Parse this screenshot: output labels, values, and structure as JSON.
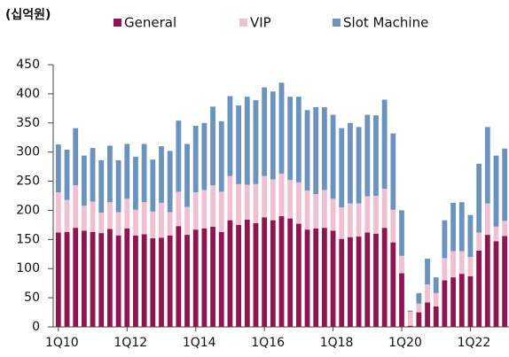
{
  "chart_data": {
    "type": "bar",
    "stacked": true,
    "y_label": "(십억원)",
    "categories": [
      "1Q10",
      null,
      null,
      null,
      null,
      null,
      null,
      null,
      "1Q12",
      null,
      null,
      null,
      null,
      null,
      null,
      null,
      "1Q14",
      null,
      null,
      null,
      null,
      null,
      null,
      null,
      "1Q16",
      null,
      null,
      null,
      null,
      null,
      null,
      null,
      "1Q18",
      null,
      null,
      null,
      null,
      null,
      null,
      null,
      "1Q20",
      null,
      null,
      null,
      null,
      null,
      null,
      null,
      "1Q22",
      null,
      null,
      null,
      null
    ],
    "series": [
      {
        "name": "General",
        "color": "#8f1450",
        "values": [
          162,
          163,
          170,
          165,
          163,
          161,
          168,
          157,
          169,
          157,
          159,
          152,
          153,
          157,
          173,
          158,
          167,
          169,
          172,
          163,
          183,
          175,
          184,
          178,
          188,
          183,
          190,
          186,
          177,
          167,
          169,
          170,
          165,
          151,
          154,
          155,
          162,
          160,
          170,
          145,
          92,
          2,
          25,
          42,
          35,
          80,
          85,
          91,
          87,
          131,
          158,
          147,
          156
        ]
      },
      {
        "name": "VIP",
        "color": "#efbfd2",
        "values": [
          69,
          55,
          73,
          43,
          52,
          35,
          46,
          40,
          51,
          44,
          55,
          46,
          60,
          40,
          59,
          48,
          64,
          66,
          71,
          69,
          76,
          70,
          60,
          67,
          71,
          70,
          73,
          66,
          71,
          67,
          59,
          65,
          55,
          54,
          58,
          57,
          62,
          65,
          67,
          56,
          30,
          24,
          15,
          31,
          23,
          38,
          45,
          39,
          33,
          31,
          54,
          25,
          26
        ]
      },
      {
        "name": "Slot Machine",
        "color": "#6b93bd",
        "values": [
          82,
          86,
          98,
          86,
          92,
          90,
          97,
          89,
          94,
          91,
          100,
          89,
          97,
          105,
          122,
          108,
          114,
          115,
          135,
          121,
          137,
          135,
          151,
          144,
          152,
          151,
          156,
          143,
          147,
          138,
          149,
          142,
          144,
          136,
          138,
          131,
          140,
          138,
          153,
          131,
          78,
          2,
          18,
          44,
          27,
          65,
          83,
          84,
          72,
          118,
          131,
          122,
          124
        ]
      }
    ],
    "ylim": [
      0,
      450
    ],
    "yticks": [
      0,
      50,
      100,
      150,
      200,
      250,
      300,
      350,
      400,
      450
    ],
    "grid": false
  }
}
